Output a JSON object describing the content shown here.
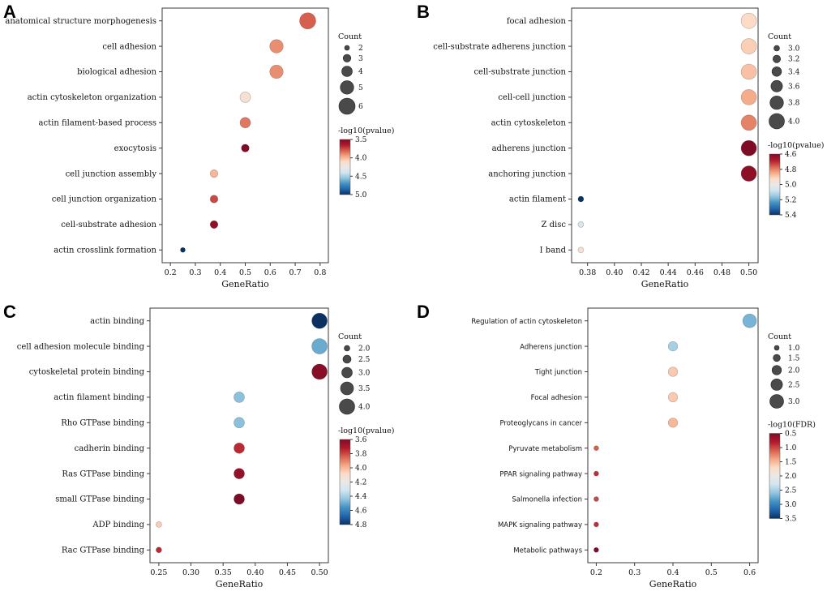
{
  "colormap": {
    "stops": [
      "#7f0c26",
      "#b2182b",
      "#d6604d",
      "#f4a582",
      "#fddbc7",
      "#ebe8e6",
      "#d1e5f0",
      "#92c5de",
      "#4393c3",
      "#2166ac",
      "#0a3161"
    ],
    "legend_dot_color": "#4a4a4a"
  },
  "chart_data": [
    {
      "type": "scatter",
      "panel": "A",
      "xlabel": "GeneRatio",
      "xlim": [
        0.2,
        0.8
      ],
      "xticks": [
        "0.2",
        "0.3",
        "0.4",
        "0.5",
        "0.6",
        "0.7",
        "0.8"
      ],
      "size": {
        "domain": [
          2,
          6
        ],
        "r": [
          3,
          10
        ]
      },
      "count_legend": {
        "title": "Count",
        "values": [
          "2",
          "3",
          "4",
          "5",
          "6"
        ]
      },
      "color_legend": {
        "title": "-log10(pvalue)",
        "min": 3.5,
        "max": 5.0,
        "ticks": [
          "3.5",
          "4.0",
          "4.5",
          "5.0"
        ]
      },
      "points": [
        {
          "label": "anatomical structure morphogenesis",
          "x": 0.75,
          "count": 6,
          "value": 3.8
        },
        {
          "label": "cell adhesion",
          "x": 0.625,
          "count": 5,
          "value": 3.9
        },
        {
          "label": "biological adhesion",
          "x": 0.625,
          "count": 5,
          "value": 3.9
        },
        {
          "label": "actin cytoskeleton organization",
          "x": 0.5,
          "count": 4,
          "value": 4.15
        },
        {
          "label": "actin filament-based process",
          "x": 0.5,
          "count": 4,
          "value": 3.85
        },
        {
          "label": "exocytosis",
          "x": 0.5,
          "count": 3,
          "value": 3.5
        },
        {
          "label": "cell junction assembly",
          "x": 0.375,
          "count": 3,
          "value": 4.0
        },
        {
          "label": "cell junction organization",
          "x": 0.375,
          "count": 3,
          "value": 3.75
        },
        {
          "label": "cell-substrate adhesion",
          "x": 0.375,
          "count": 3,
          "value": 3.55
        },
        {
          "label": "actin crosslink formation",
          "x": 0.25,
          "count": 2,
          "value": 5.0
        }
      ]
    },
    {
      "type": "scatter",
      "panel": "B",
      "xlabel": "GeneRatio",
      "xlim": [
        0.375,
        0.5
      ],
      "xticks": [
        "0.38",
        "0.40",
        "0.42",
        "0.44",
        "0.46",
        "0.48",
        "0.50"
      ],
      "size": {
        "domain": [
          3,
          4
        ],
        "r": [
          3.5,
          9.5
        ]
      },
      "count_legend": {
        "title": "Count",
        "values": [
          "3.0",
          "3.2",
          "3.4",
          "3.6",
          "3.8",
          "4.0"
        ]
      },
      "color_legend": {
        "title": "-log10(pvalue)",
        "min": 4.6,
        "max": 5.4,
        "ticks": [
          "4.6",
          "4.8",
          "5.0",
          "5.2",
          "5.4"
        ]
      },
      "points": [
        {
          "label": "focal adhesion",
          "x": 0.5,
          "count": 4,
          "value": 4.92
        },
        {
          "label": "cell-substrate adherens junction",
          "x": 0.5,
          "count": 4,
          "value": 4.9
        },
        {
          "label": "cell-substrate junction",
          "x": 0.5,
          "count": 4,
          "value": 4.88
        },
        {
          "label": "cell-cell junction",
          "x": 0.5,
          "count": 4,
          "value": 4.85
        },
        {
          "label": "actin cytoskeleton",
          "x": 0.5,
          "count": 4,
          "value": 4.8
        },
        {
          "label": "adherens junction",
          "x": 0.5,
          "count": 4,
          "value": 4.6
        },
        {
          "label": "anchoring junction",
          "x": 0.5,
          "count": 4,
          "value": 4.62
        },
        {
          "label": "actin filament",
          "x": 0.375,
          "count": 3,
          "value": 5.4
        },
        {
          "label": "Z disc",
          "x": 0.375,
          "count": 3,
          "value": 5.05
        },
        {
          "label": "I band",
          "x": 0.375,
          "count": 3,
          "value": 4.95
        }
      ]
    },
    {
      "type": "scatter",
      "panel": "C",
      "xlabel": "GeneRatio",
      "xlim": [
        0.25,
        0.5
      ],
      "xticks": [
        "0.25",
        "0.30",
        "0.35",
        "0.40",
        "0.45",
        "0.50"
      ],
      "size": {
        "domain": [
          2,
          4
        ],
        "r": [
          3.5,
          9.5
        ]
      },
      "count_legend": {
        "title": "Count",
        "values": [
          "2.0",
          "2.5",
          "3.0",
          "3.5",
          "4.0"
        ]
      },
      "color_legend": {
        "title": "-log10(pvalue)",
        "min": 3.6,
        "max": 4.8,
        "ticks": [
          "3.6",
          "3.8",
          "4.0",
          "4.2",
          "4.4",
          "4.6",
          "4.8"
        ]
      },
      "points": [
        {
          "label": "actin binding",
          "x": 0.5,
          "count": 4,
          "value": 4.8
        },
        {
          "label": "cell adhesion molecule binding",
          "x": 0.5,
          "count": 4,
          "value": 4.5
        },
        {
          "label": "cytoskeletal protein binding",
          "x": 0.5,
          "count": 4,
          "value": 3.62
        },
        {
          "label": "actin filament binding",
          "x": 0.375,
          "count": 3,
          "value": 4.45
        },
        {
          "label": "Rho GTPase binding",
          "x": 0.375,
          "count": 3,
          "value": 4.45
        },
        {
          "label": "cadherin binding",
          "x": 0.375,
          "count": 3,
          "value": 3.75
        },
        {
          "label": "Ras GTPase binding",
          "x": 0.375,
          "count": 3,
          "value": 3.65
        },
        {
          "label": "small GTPase binding",
          "x": 0.375,
          "count": 3,
          "value": 3.6
        },
        {
          "label": "ADP binding",
          "x": 0.25,
          "count": 2,
          "value": 4.05
        },
        {
          "label": "Rac GTPase binding",
          "x": 0.25,
          "count": 2,
          "value": 3.75
        }
      ]
    },
    {
      "type": "scatter",
      "panel": "D",
      "xlabel": "GeneRatio",
      "xlim": [
        0.2,
        0.6
      ],
      "xticks": [
        "0.2",
        "0.3",
        "0.4",
        "0.5",
        "0.6"
      ],
      "size": {
        "domain": [
          1,
          3
        ],
        "r": [
          3,
          8.5
        ]
      },
      "count_legend": {
        "title": "Count",
        "values": [
          "1.0",
          "1.5",
          "2.0",
          "2.5",
          "3.0"
        ]
      },
      "color_legend": {
        "title": "-log10(FDR)",
        "min": 0.5,
        "max": 3.5,
        "ticks": [
          "0.5",
          "1.0",
          "1.5",
          "2.0",
          "2.5",
          "3.0",
          "3.5"
        ]
      },
      "points": [
        {
          "label": "Regulation of actin cytoskeleton",
          "x": 0.6,
          "count": 3,
          "value": 2.7
        },
        {
          "label": "Adherens junction",
          "x": 0.4,
          "count": 2,
          "value": 2.5
        },
        {
          "label": "Tight junction",
          "x": 0.4,
          "count": 2,
          "value": 1.6
        },
        {
          "label": "Focal adhesion",
          "x": 0.4,
          "count": 2,
          "value": 1.6
        },
        {
          "label": "Proteoglycans in cancer",
          "x": 0.4,
          "count": 2,
          "value": 1.5
        },
        {
          "label": "Pyruvate metabolism",
          "x": 0.2,
          "count": 1,
          "value": 1.1
        },
        {
          "label": "PPAR signaling pathway",
          "x": 0.2,
          "count": 1,
          "value": 0.9
        },
        {
          "label": "Salmonella infection",
          "x": 0.2,
          "count": 1,
          "value": 1.0
        },
        {
          "label": "MAPK signaling pathway",
          "x": 0.2,
          "count": 1,
          "value": 0.9
        },
        {
          "label": "Metabolic pathways",
          "x": 0.2,
          "count": 1,
          "value": 0.5
        }
      ]
    }
  ]
}
